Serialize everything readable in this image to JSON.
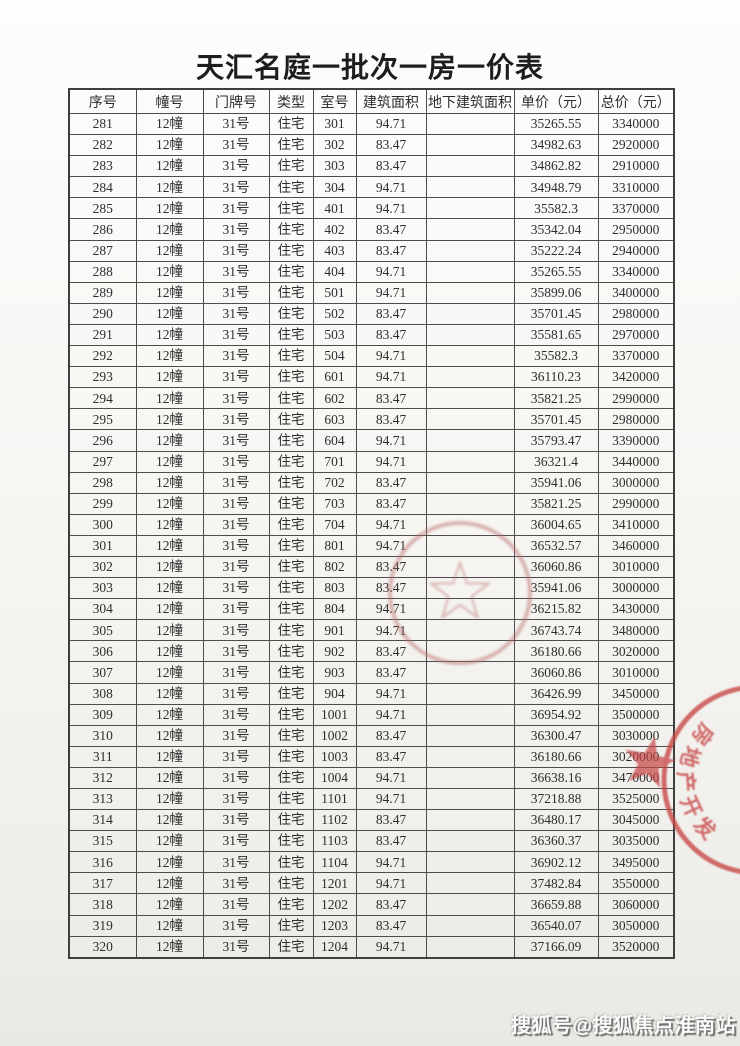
{
  "title": "天汇名庭一批次一房一价表",
  "table": {
    "headers": [
      "序号",
      "幢号",
      "门牌号",
      "类型",
      "室号",
      "建筑面积",
      "地下建筑面积",
      "单价（元）",
      "总价（元）"
    ],
    "column_keys": [
      "seq",
      "building",
      "door",
      "type",
      "room",
      "area",
      "underground_area",
      "unit_price",
      "total_price"
    ],
    "rows": [
      [
        "281",
        "12幢",
        "31号",
        "住宅",
        "301",
        "94.71",
        "",
        "35265.55",
        "3340000"
      ],
      [
        "282",
        "12幢",
        "31号",
        "住宅",
        "302",
        "83.47",
        "",
        "34982.63",
        "2920000"
      ],
      [
        "283",
        "12幢",
        "31号",
        "住宅",
        "303",
        "83.47",
        "",
        "34862.82",
        "2910000"
      ],
      [
        "284",
        "12幢",
        "31号",
        "住宅",
        "304",
        "94.71",
        "",
        "34948.79",
        "3310000"
      ],
      [
        "285",
        "12幢",
        "31号",
        "住宅",
        "401",
        "94.71",
        "",
        "35582.3",
        "3370000"
      ],
      [
        "286",
        "12幢",
        "31号",
        "住宅",
        "402",
        "83.47",
        "",
        "35342.04",
        "2950000"
      ],
      [
        "287",
        "12幢",
        "31号",
        "住宅",
        "403",
        "83.47",
        "",
        "35222.24",
        "2940000"
      ],
      [
        "288",
        "12幢",
        "31号",
        "住宅",
        "404",
        "94.71",
        "",
        "35265.55",
        "3340000"
      ],
      [
        "289",
        "12幢",
        "31号",
        "住宅",
        "501",
        "94.71",
        "",
        "35899.06",
        "3400000"
      ],
      [
        "290",
        "12幢",
        "31号",
        "住宅",
        "502",
        "83.47",
        "",
        "35701.45",
        "2980000"
      ],
      [
        "291",
        "12幢",
        "31号",
        "住宅",
        "503",
        "83.47",
        "",
        "35581.65",
        "2970000"
      ],
      [
        "292",
        "12幢",
        "31号",
        "住宅",
        "504",
        "94.71",
        "",
        "35582.3",
        "3370000"
      ],
      [
        "293",
        "12幢",
        "31号",
        "住宅",
        "601",
        "94.71",
        "",
        "36110.23",
        "3420000"
      ],
      [
        "294",
        "12幢",
        "31号",
        "住宅",
        "602",
        "83.47",
        "",
        "35821.25",
        "2990000"
      ],
      [
        "295",
        "12幢",
        "31号",
        "住宅",
        "603",
        "83.47",
        "",
        "35701.45",
        "2980000"
      ],
      [
        "296",
        "12幢",
        "31号",
        "住宅",
        "604",
        "94.71",
        "",
        "35793.47",
        "3390000"
      ],
      [
        "297",
        "12幢",
        "31号",
        "住宅",
        "701",
        "94.71",
        "",
        "36321.4",
        "3440000"
      ],
      [
        "298",
        "12幢",
        "31号",
        "住宅",
        "702",
        "83.47",
        "",
        "35941.06",
        "3000000"
      ],
      [
        "299",
        "12幢",
        "31号",
        "住宅",
        "703",
        "83.47",
        "",
        "35821.25",
        "2990000"
      ],
      [
        "300",
        "12幢",
        "31号",
        "住宅",
        "704",
        "94.71",
        "",
        "36004.65",
        "3410000"
      ],
      [
        "301",
        "12幢",
        "31号",
        "住宅",
        "801",
        "94.71",
        "",
        "36532.57",
        "3460000"
      ],
      [
        "302",
        "12幢",
        "31号",
        "住宅",
        "802",
        "83.47",
        "",
        "36060.86",
        "3010000"
      ],
      [
        "303",
        "12幢",
        "31号",
        "住宅",
        "803",
        "83.47",
        "",
        "35941.06",
        "3000000"
      ],
      [
        "304",
        "12幢",
        "31号",
        "住宅",
        "804",
        "94.71",
        "",
        "36215.82",
        "3430000"
      ],
      [
        "305",
        "12幢",
        "31号",
        "住宅",
        "901",
        "94.71",
        "",
        "36743.74",
        "3480000"
      ],
      [
        "306",
        "12幢",
        "31号",
        "住宅",
        "902",
        "83.47",
        "",
        "36180.66",
        "3020000"
      ],
      [
        "307",
        "12幢",
        "31号",
        "住宅",
        "903",
        "83.47",
        "",
        "36060.86",
        "3010000"
      ],
      [
        "308",
        "12幢",
        "31号",
        "住宅",
        "904",
        "94.71",
        "",
        "36426.99",
        "3450000"
      ],
      [
        "309",
        "12幢",
        "31号",
        "住宅",
        "1001",
        "94.71",
        "",
        "36954.92",
        "3500000"
      ],
      [
        "310",
        "12幢",
        "31号",
        "住宅",
        "1002",
        "83.47",
        "",
        "36300.47",
        "3030000"
      ],
      [
        "311",
        "12幢",
        "31号",
        "住宅",
        "1003",
        "83.47",
        "",
        "36180.66",
        "3020000"
      ],
      [
        "312",
        "12幢",
        "31号",
        "住宅",
        "1004",
        "94.71",
        "",
        "36638.16",
        "3470000"
      ],
      [
        "313",
        "12幢",
        "31号",
        "住宅",
        "1101",
        "94.71",
        "",
        "37218.88",
        "3525000"
      ],
      [
        "314",
        "12幢",
        "31号",
        "住宅",
        "1102",
        "83.47",
        "",
        "36480.17",
        "3045000"
      ],
      [
        "315",
        "12幢",
        "31号",
        "住宅",
        "1103",
        "83.47",
        "",
        "36360.37",
        "3035000"
      ],
      [
        "316",
        "12幢",
        "31号",
        "住宅",
        "1104",
        "94.71",
        "",
        "36902.12",
        "3495000"
      ],
      [
        "317",
        "12幢",
        "31号",
        "住宅",
        "1201",
        "94.71",
        "",
        "37482.84",
        "3550000"
      ],
      [
        "318",
        "12幢",
        "31号",
        "住宅",
        "1202",
        "83.47",
        "",
        "36659.88",
        "3060000"
      ],
      [
        "319",
        "12幢",
        "31号",
        "住宅",
        "1203",
        "83.47",
        "",
        "36540.07",
        "3050000"
      ],
      [
        "320",
        "12幢",
        "31号",
        "住宅",
        "1204",
        "94.71",
        "",
        "37166.09",
        "3520000"
      ]
    ]
  },
  "stamps": {
    "right_seal_arc_text": "房地产开发"
  },
  "watermark": {
    "text": "搜狐号@搜狐焦点淮南站"
  },
  "colors": {
    "stamp_faint": "#b96a6a",
    "stamp_strong": "#c74545"
  }
}
